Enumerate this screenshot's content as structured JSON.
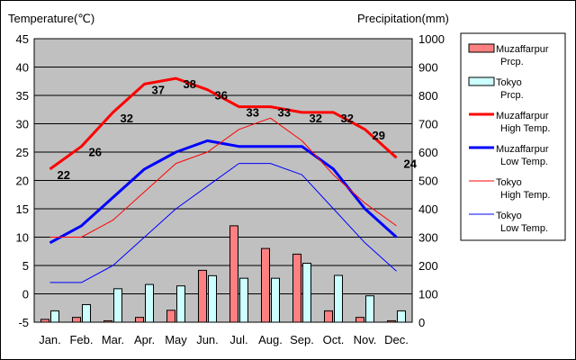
{
  "chart_data": {
    "type": "bar+line",
    "ylabel_left": "Temperature(℃)",
    "ylabel_right": "Precipitation(mm)",
    "categories": [
      "Jan.",
      "Feb.",
      "Mar.",
      "Apr.",
      "May",
      "Jun.",
      "Jul.",
      "Aug.",
      "Sep.",
      "Oct.",
      "Nov.",
      "Dec."
    ],
    "ylim_left": [
      -5,
      45
    ],
    "yticks_left": [
      "-5",
      "0",
      "5",
      "10",
      "15",
      "20",
      "25",
      "30",
      "35",
      "40",
      "45"
    ],
    "ylim_right": [
      0,
      1000
    ],
    "yticks_right": [
      "0",
      "100",
      "200",
      "300",
      "400",
      "500",
      "600",
      "700",
      "800",
      "900",
      "1000"
    ],
    "grid": true,
    "plot_background": "#c0c0c0",
    "legend_position": "right",
    "bar_series": [
      {
        "name": "Muzaffarpur\nPrcp.",
        "color": "#ff8080",
        "values": [
          10,
          17,
          5,
          17,
          42,
          183,
          340,
          260,
          240,
          40,
          17,
          5
        ]
      },
      {
        "name": "Tokyo\nPrcp.",
        "color": "#ccffff",
        "values": [
          40,
          62,
          118,
          133,
          128,
          164,
          155,
          155,
          208,
          165,
          93,
          40
        ]
      }
    ],
    "line_series": [
      {
        "name": "Muzaffarpur\nHigh Temp.",
        "color": "#ff0000",
        "width": 3,
        "values": [
          22,
          26,
          32,
          37,
          38,
          36,
          33,
          33,
          32,
          32,
          29,
          24
        ],
        "labels": [
          "22",
          "26",
          "32",
          "37",
          "38",
          "36",
          "33",
          "33",
          "32",
          "32",
          "29",
          "24"
        ]
      },
      {
        "name": "Muzaffarpur\nLow Temp.",
        "color": "#0000ff",
        "width": 3,
        "values": [
          9,
          12,
          17,
          22,
          25,
          27,
          26,
          26,
          26,
          22,
          15,
          10
        ]
      },
      {
        "name": "Tokyo\nHigh Temp.",
        "color": "#ff0000",
        "width": 1,
        "values": [
          10,
          10,
          13,
          18,
          23,
          25,
          29,
          31,
          27,
          21,
          16,
          12
        ]
      },
      {
        "name": "Tokyo\nLow Temp.",
        "color": "#0000ff",
        "width": 1,
        "values": [
          2,
          2,
          5,
          10,
          15,
          19,
          23,
          23,
          21,
          15,
          9,
          4
        ]
      }
    ]
  }
}
